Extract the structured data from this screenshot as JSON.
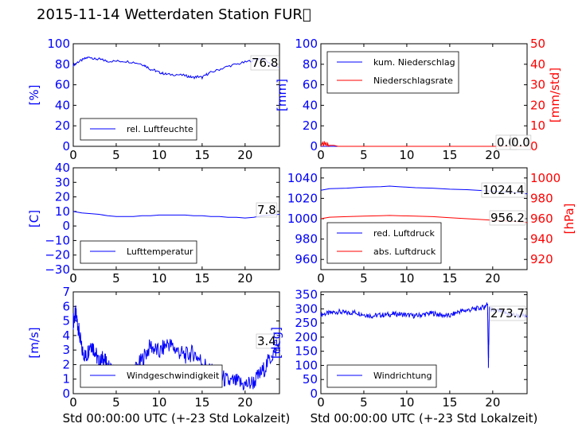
{
  "page": {
    "title": "2015-11-14 Wetterdaten Station FUR\u0000",
    "colors": {
      "blue": "#0000ff",
      "red": "#ff0000",
      "black": "#000000"
    }
  },
  "chart_data": [
    {
      "id": "humidity",
      "type": "line",
      "title": "",
      "xlabel": "",
      "ylabel": "[%]",
      "ylabel_color": "#0000ff",
      "xlim": [
        0,
        24
      ],
      "ylim": [
        0,
        100
      ],
      "yticks": [
        0,
        20,
        40,
        60,
        80,
        100
      ],
      "xticks": [
        0,
        5,
        10,
        15,
        20
      ],
      "legend": "bottom-left",
      "current_label": "76.8",
      "series": [
        {
          "name": "rel. Luftfeuchte",
          "color": "#0000ff",
          "axis": "left",
          "x": [
            0,
            0.5,
            1,
            1.5,
            2,
            2.5,
            3,
            3.5,
            4,
            5,
            6,
            7,
            8,
            8.5,
            9,
            9.5,
            10,
            10.5,
            11,
            12,
            13,
            13.5,
            14,
            14.5,
            15,
            15.5,
            16,
            17,
            18,
            19,
            20,
            21,
            22,
            23,
            24
          ],
          "y": [
            79,
            82,
            84,
            86,
            87,
            85,
            85,
            84,
            83,
            83,
            83,
            82,
            80,
            78,
            75,
            74,
            72,
            71,
            70,
            70,
            69,
            68,
            67,
            68,
            67,
            70,
            72,
            75,
            78,
            80,
            82,
            84,
            86,
            80,
            77
          ]
        }
      ]
    },
    {
      "id": "precipitation",
      "type": "line",
      "title": "",
      "xlabel": "",
      "ylabel": "[mm]",
      "ylabel_color": "#0000ff",
      "ylabel_right": "[mm/std]",
      "ylabel_right_color": "#ff0000",
      "xlim": [
        0,
        24
      ],
      "ylim": [
        0,
        100
      ],
      "ylim_right": [
        0,
        50
      ],
      "yticks": [
        0,
        20,
        40,
        60,
        80,
        100
      ],
      "yticks_right": [
        0,
        10,
        20,
        30,
        40,
        50
      ],
      "xticks": [
        0,
        5,
        10,
        15,
        20
      ],
      "legend": "top-left",
      "current_label": "0.0",
      "current_label_right": "0.0",
      "series": [
        {
          "name": "kum. Niederschlag",
          "color": "#0000ff",
          "axis": "left",
          "x": [
            0,
            24
          ],
          "y": [
            0,
            0
          ]
        },
        {
          "name": "Niederschlagsrate",
          "color": "#ff0000",
          "axis": "right",
          "x": [
            0,
            0.2,
            0.3,
            0.4,
            0.5,
            0.6,
            0.7,
            0.8,
            0.9,
            1.0,
            1.5,
            2.0,
            2.5,
            24
          ],
          "y": [
            0,
            2,
            0,
            2.5,
            0.5,
            2,
            0,
            1.5,
            0,
            0.5,
            0.5,
            0,
            0,
            0
          ]
        }
      ]
    },
    {
      "id": "temperature",
      "type": "line",
      "title": "",
      "xlabel": "",
      "ylabel": "[C]",
      "ylabel_color": "#0000ff",
      "xlim": [
        0,
        24
      ],
      "ylim": [
        -30,
        40
      ],
      "yticks": [
        -30,
        -20,
        -10,
        0,
        10,
        20,
        30,
        40
      ],
      "xticks": [
        0,
        5,
        10,
        15,
        20
      ],
      "legend": "bottom-left",
      "current_label": "7.8",
      "series": [
        {
          "name": "Lufttemperatur",
          "color": "#0000ff",
          "axis": "left",
          "x": [
            0,
            1,
            2,
            3,
            4,
            5,
            6,
            7,
            8,
            9,
            10,
            11,
            12,
            13,
            14,
            15,
            16,
            17,
            18,
            19,
            20,
            21,
            22,
            23,
            24
          ],
          "y": [
            10,
            9,
            8.5,
            8,
            7,
            6.5,
            6.5,
            6.5,
            7,
            7,
            7.5,
            7.5,
            7.5,
            7.5,
            7,
            7,
            6.5,
            6.5,
            6,
            6,
            5.5,
            6,
            7,
            7.5,
            8
          ]
        }
      ]
    },
    {
      "id": "pressure",
      "type": "line",
      "title": "",
      "xlabel": "",
      "ylabel": "",
      "ylabel_right": "[hPa]",
      "ylabel_right_color": "#ff0000",
      "xlim": [
        0,
        24
      ],
      "ylim": [
        950,
        1050
      ],
      "ylim_right": [
        910,
        1010
      ],
      "yticks": [
        960,
        980,
        1000,
        1020,
        1040
      ],
      "yticks_right": [
        920,
        940,
        960,
        980,
        1000
      ],
      "xticks": [
        0,
        5,
        10,
        15,
        20
      ],
      "legend": "bottom-left",
      "current_label": "1024.4",
      "current_label_right": "956.2",
      "series": [
        {
          "name": "red. Luftdruck",
          "color": "#0000ff",
          "axis": "left",
          "x": [
            0,
            1,
            3,
            5,
            7,
            8,
            9,
            11,
            13,
            15,
            17,
            19,
            21,
            23,
            24
          ],
          "y": [
            1028,
            1029.5,
            1030,
            1031,
            1031.5,
            1032,
            1031.5,
            1030.5,
            1030,
            1029,
            1028.5,
            1027.5,
            1026.5,
            1025.5,
            1024.4
          ]
        },
        {
          "name": "abs. Luftdruck",
          "color": "#ff0000",
          "axis": "right",
          "x": [
            0,
            1,
            3,
            5,
            7,
            8,
            9,
            11,
            13,
            15,
            17,
            19,
            21,
            23,
            24
          ],
          "y": [
            960,
            961.5,
            962,
            962.5,
            963,
            963.2,
            963,
            962.5,
            962,
            961,
            960,
            959,
            958,
            957,
            956.2
          ]
        }
      ]
    },
    {
      "id": "windspeed",
      "type": "line",
      "title": "",
      "xlabel": "Std 00:00:00 UTC (+-23 Std Lokalzeit)",
      "ylabel": "[m/s]",
      "ylabel_color": "#0000ff",
      "xlim": [
        0,
        24
      ],
      "ylim": [
        0,
        7
      ],
      "yticks": [
        0,
        1,
        2,
        3,
        4,
        5,
        6,
        7
      ],
      "xticks": [
        0,
        5,
        10,
        15,
        20
      ],
      "legend": "bottom-left",
      "current_label": "3.4",
      "series": [
        {
          "name": "Windgeschwindigkeit",
          "color": "#0000ff",
          "axis": "left",
          "x": [
            0,
            0.3,
            0.6,
            1,
            1.5,
            2,
            2.5,
            3,
            3.5,
            4,
            5,
            6,
            7,
            8,
            9,
            10,
            11,
            12,
            13,
            14,
            15,
            16,
            17,
            18,
            19,
            20,
            21,
            22,
            23,
            24
          ],
          "y": [
            5,
            5.5,
            4.5,
            3,
            2.5,
            3.5,
            3,
            2,
            2.5,
            1.8,
            1.5,
            1.2,
            1.5,
            2.3,
            3.3,
            2.8,
            3.5,
            3.0,
            2.6,
            2.8,
            2.2,
            1.5,
            1.3,
            0.8,
            0.8,
            0.6,
            0.8,
            1.5,
            2.5,
            3.4
          ]
        }
      ]
    },
    {
      "id": "winddirection",
      "type": "line",
      "title": "",
      "xlabel": "Std 00:00:00 UTC (+-23 Std Lokalzeit)",
      "ylabel": "[deg]",
      "ylabel_color": "#0000ff",
      "xlim": [
        0,
        24
      ],
      "ylim": [
        0,
        360
      ],
      "yticks": [
        0,
        50,
        100,
        150,
        200,
        250,
        300,
        350
      ],
      "xticks": [
        0,
        5,
        10,
        15,
        20
      ],
      "legend": "bottom-left",
      "current_label": "273.7",
      "series": [
        {
          "name": "Windrichtung",
          "color": "#0000ff",
          "axis": "left",
          "x": [
            0,
            1,
            2,
            3,
            4,
            5,
            6,
            7,
            8,
            9,
            10,
            11,
            12,
            13,
            14,
            15,
            16,
            17,
            18,
            19,
            19.4,
            19.5,
            19.6,
            20,
            21,
            22,
            23,
            24
          ],
          "y": [
            280,
            285,
            290,
            285,
            288,
            280,
            275,
            278,
            280,
            282,
            278,
            275,
            280,
            285,
            278,
            275,
            290,
            295,
            300,
            305,
            320,
            90,
            300,
            295,
            290,
            280,
            275,
            274
          ]
        }
      ]
    }
  ]
}
